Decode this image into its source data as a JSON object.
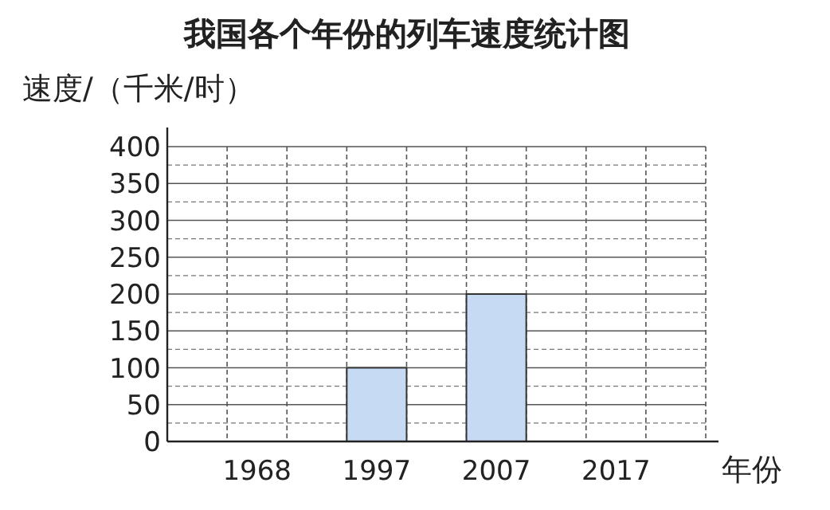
{
  "chart_data": {
    "type": "bar",
    "title": "我国各个年份的列车速度统计图",
    "ylabel": "速度/（千米/时）",
    "xlabel": "年份",
    "categories": [
      "1968",
      "1997",
      "2007",
      "2017"
    ],
    "values": [
      null,
      100,
      200,
      null
    ],
    "color": "#c6daf3",
    "ylim": [
      0,
      400
    ],
    "yticks": [
      0,
      50,
      100,
      150,
      200,
      250,
      300,
      350,
      400
    ],
    "grid": true
  }
}
